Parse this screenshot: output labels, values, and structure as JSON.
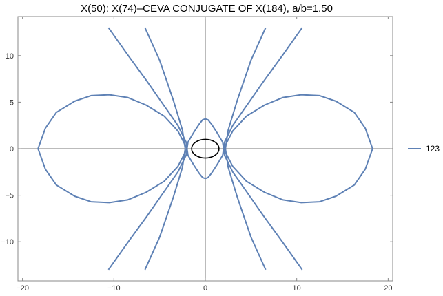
{
  "chart_data": {
    "type": "line",
    "title": "X(50): X(74)–CEVA CONJUGATE OF X(184), a/b=1.50",
    "xlabel": "",
    "ylabel": "",
    "xlim": [
      -20.5,
      20.5
    ],
    "ylim": [
      -14.2,
      14.2
    ],
    "x_ticks": [
      -20,
      -10,
      0,
      10,
      20
    ],
    "y_ticks": [
      -10,
      -5,
      0,
      5,
      10
    ],
    "x_tick_labels": [
      "−20",
      "−10",
      "0",
      "10",
      "20"
    ],
    "y_tick_labels": [
      "−10",
      "−5",
      "0",
      "5",
      "10"
    ],
    "grid": false,
    "axes_through_origin": true,
    "legend": {
      "position": "right",
      "entries": [
        "123"
      ]
    },
    "colors": {
      "series": "#5e81b5",
      "ellipse": "#000000",
      "axes": "#777777"
    },
    "series": [
      {
        "name": "123",
        "curves": [
          {
            "x": [
              -10.6,
              -8.5,
              -6.5,
              -4.5,
              -3.0,
              -2.1,
              -1.9,
              -1.3,
              -0.7,
              -0.3,
              0.0,
              0.3,
              0.7,
              1.3,
              1.9,
              2.1,
              3.0,
              4.5,
              6.5,
              8.5,
              10.6
            ],
            "y": [
              13.0,
              10.1,
              7.4,
              4.6,
              2.5,
              0.7,
              -0.7,
              -1.7,
              -2.6,
              -3.1,
              -3.2,
              -3.1,
              -2.6,
              -1.7,
              -0.7,
              0.7,
              2.5,
              4.6,
              7.4,
              10.1,
              13.0
            ]
          },
          {
            "x": [
              -10.6,
              -8.5,
              -6.5,
              -4.5,
              -3.0,
              -2.1,
              -1.9,
              -1.3,
              -0.7,
              -0.3,
              0.0,
              0.3,
              0.7,
              1.3,
              1.9,
              2.1,
              3.0,
              4.5,
              6.5,
              8.5,
              10.6
            ],
            "y": [
              -13.0,
              -10.1,
              -7.4,
              -4.6,
              -2.5,
              -0.7,
              0.7,
              1.7,
              2.6,
              3.1,
              3.2,
              3.1,
              2.6,
              1.7,
              0.7,
              -0.7,
              -2.5,
              -4.6,
              -7.4,
              -10.1,
              -13.0
            ]
          },
          {
            "x": [
              -6.6,
              -5.0,
              -3.5,
              -2.5,
              -2.2,
              -2.5,
              -3.5,
              -5.0,
              -6.6
            ],
            "y": [
              13.0,
              9.5,
              5.2,
              2.0,
              0.0,
              -2.0,
              -5.2,
              -9.5,
              -13.0
            ]
          },
          {
            "x": [
              6.6,
              5.0,
              3.5,
              2.5,
              2.2,
              2.5,
              3.5,
              5.0,
              6.6
            ],
            "y": [
              13.0,
              9.5,
              5.2,
              2.0,
              0.0,
              -2.0,
              -5.2,
              -9.5,
              -13.0
            ]
          },
          {
            "x": [
              -2.0,
              -3.0,
              -4.5,
              -6.5,
              -8.5,
              -10.5,
              -12.5,
              -14.3,
              -16.3,
              -17.5,
              -18.3,
              -17.5,
              -16.3,
              -14.3,
              -12.5,
              -10.5,
              -8.5,
              -6.5,
              -4.5,
              -3.0,
              -2.0
            ],
            "y": [
              0.0,
              1.9,
              3.5,
              4.7,
              5.5,
              5.8,
              5.7,
              5.1,
              3.9,
              2.2,
              0.0,
              -2.2,
              -3.9,
              -5.1,
              -5.7,
              -5.8,
              -5.5,
              -4.7,
              -3.5,
              -1.9,
              0.0
            ]
          },
          {
            "x": [
              2.0,
              3.0,
              4.5,
              6.5,
              8.5,
              10.5,
              12.5,
              14.3,
              16.3,
              17.5,
              18.3,
              17.5,
              16.3,
              14.3,
              12.5,
              10.5,
              8.5,
              6.5,
              4.5,
              3.0,
              2.0
            ],
            "y": [
              0.0,
              1.9,
              3.5,
              4.7,
              5.5,
              5.8,
              5.7,
              5.1,
              3.9,
              2.2,
              0.0,
              -2.2,
              -3.9,
              -5.1,
              -5.7,
              -5.8,
              -5.5,
              -4.7,
              -3.5,
              -1.9,
              0.0
            ]
          }
        ]
      }
    ],
    "ellipse": {
      "cx": 0,
      "cy": 0,
      "rx": 1.5,
      "ry": 1.0
    }
  }
}
